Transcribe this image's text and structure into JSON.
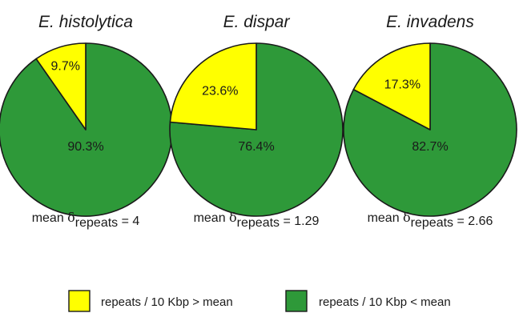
{
  "chart_data": [
    {
      "type": "pie",
      "title": "E. histolytica",
      "slices": [
        {
          "label": "9.7%",
          "value": 9.7,
          "legend": 0
        },
        {
          "label": "90.3%",
          "value": 90.3,
          "legend": 1
        }
      ],
      "mean": {
        "prefix": "mean ",
        "symbol": "δ",
        "subscript": "repeats",
        "suffix": " = 4"
      }
    },
    {
      "type": "pie",
      "title": "E. dispar",
      "slices": [
        {
          "label": "23.6%",
          "value": 23.6,
          "legend": 0
        },
        {
          "label": "76.4%",
          "value": 76.4,
          "legend": 1
        }
      ],
      "mean": {
        "prefix": "mean ",
        "symbol": "δ",
        "subscript": "repeats",
        "suffix": " = 1.29"
      }
    },
    {
      "type": "pie",
      "title": "E. invadens",
      "slices": [
        {
          "label": "17.3%",
          "value": 17.3,
          "legend": 0
        },
        {
          "label": "82.7%",
          "value": 82.7,
          "legend": 1
        }
      ],
      "mean": {
        "prefix": "mean ",
        "symbol": "δ",
        "subscript": "repeats",
        "suffix": " = 2.66"
      }
    }
  ],
  "legend": [
    {
      "label": "repeats / 10 Kbp > mean",
      "color": "#ffff00"
    },
    {
      "label": "repeats / 10 Kbp < mean",
      "color": "#2e9939"
    }
  ],
  "style": {
    "outline": "#1a1a1a"
  }
}
